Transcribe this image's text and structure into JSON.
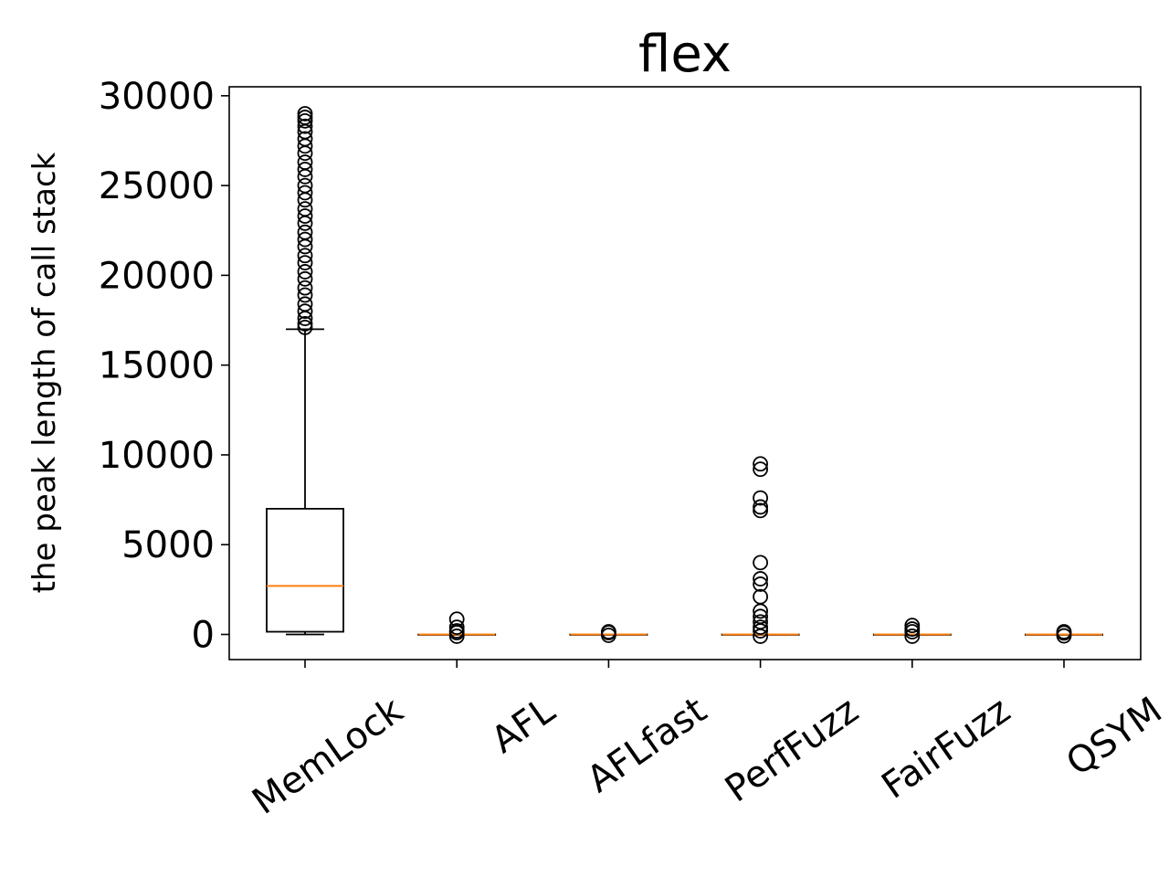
{
  "chart_data": {
    "type": "box",
    "title": "flex",
    "xlabel": "",
    "ylabel": "the peak length of call stack",
    "ylim": [
      -1400,
      30500
    ],
    "yticks": [
      0,
      5000,
      10000,
      15000,
      20000,
      25000,
      30000
    ],
    "grid": false,
    "colors": {
      "box": "#000000",
      "median": "#ff7f0e",
      "flier": "#000000"
    },
    "boxes": [
      {
        "name": "MemLock",
        "whislo": 0,
        "q1": 150,
        "med": 2700,
        "q3": 7000,
        "whishi": 17000,
        "fliers": [
          17100,
          17300,
          17600,
          18000,
          18400,
          18900,
          19300,
          19800,
          20200,
          20700,
          21100,
          21600,
          22000,
          22400,
          22900,
          23300,
          23700,
          24200,
          24600,
          25000,
          25500,
          25900,
          26300,
          26800,
          27200,
          27600,
          28000,
          28300,
          28600,
          28800,
          29000
        ]
      },
      {
        "name": "AFL",
        "whislo": 0,
        "q1": 0,
        "med": 0,
        "q3": 0,
        "whishi": 0,
        "fliers": [
          -100,
          100,
          200,
          400,
          850
        ]
      },
      {
        "name": "AFLfast",
        "whislo": 0,
        "q1": 0,
        "med": 0,
        "q3": 0,
        "whishi": 0,
        "fliers": [
          -50,
          100,
          150
        ]
      },
      {
        "name": "PerfFuzz",
        "whislo": 0,
        "q1": 0,
        "med": 0,
        "q3": 0,
        "whishi": 0,
        "fliers": [
          -100,
          200,
          400,
          700,
          1000,
          1300,
          2100,
          2800,
          3100,
          4000,
          6900,
          7100,
          7600,
          9200,
          9500
        ]
      },
      {
        "name": "FairFuzz",
        "whislo": 0,
        "q1": 0,
        "med": 0,
        "q3": 0,
        "whishi": 0,
        "fliers": [
          -100,
          150,
          300,
          500
        ]
      },
      {
        "name": "QSYM",
        "whislo": 0,
        "q1": 0,
        "med": 0,
        "q3": 0,
        "whishi": 0,
        "fliers": [
          -80,
          80,
          150
        ]
      }
    ]
  }
}
